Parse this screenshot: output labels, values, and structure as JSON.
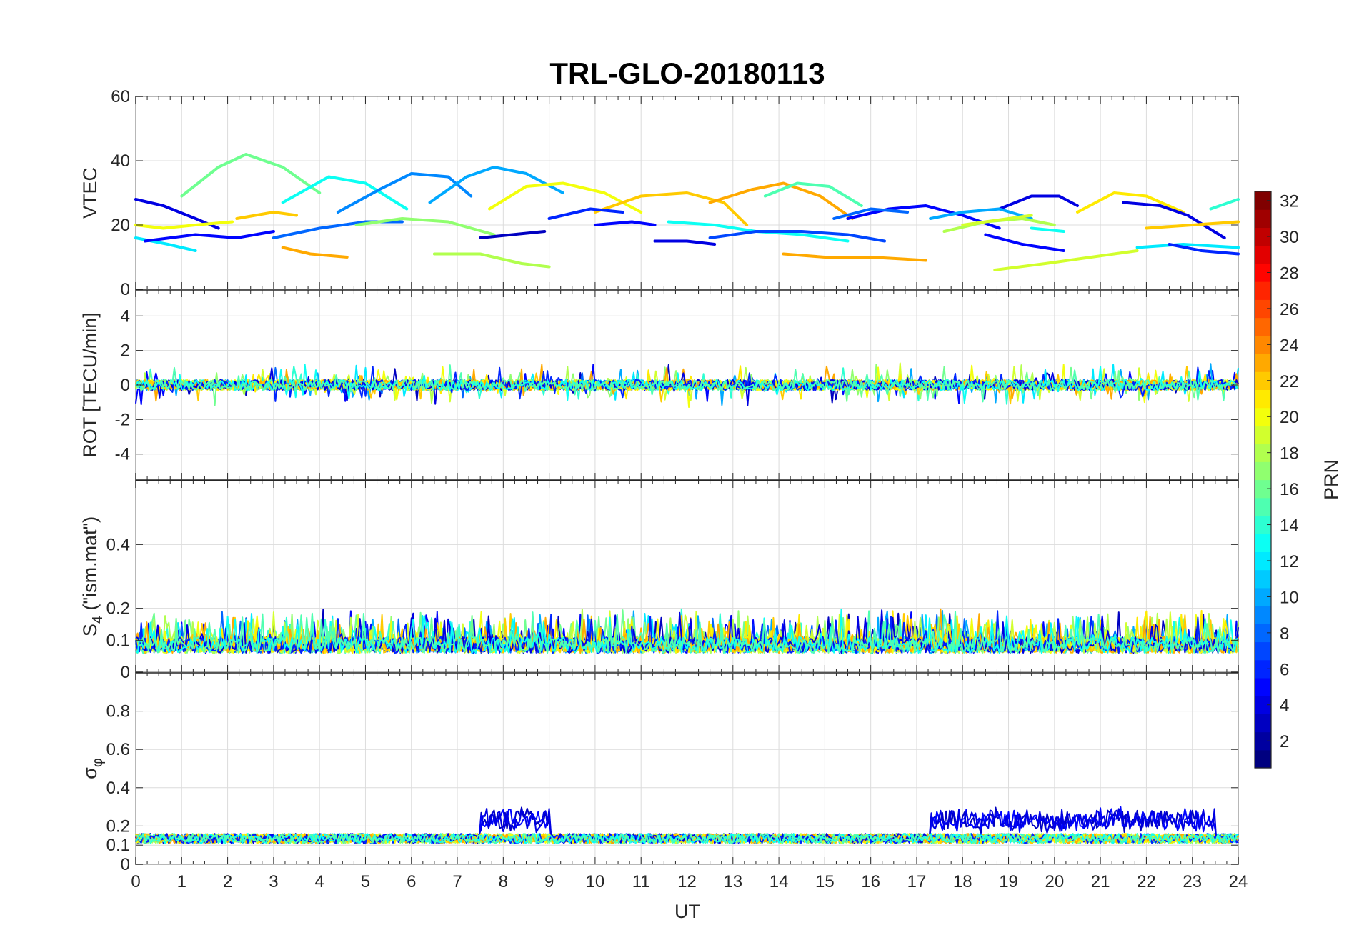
{
  "chart_data": {
    "type": "line",
    "title": "TRL-GLO-20180113",
    "xlabel": "UT",
    "xlim": [
      0,
      24
    ],
    "xticks": [
      "0",
      "1",
      "2",
      "3",
      "4",
      "5",
      "6",
      "7",
      "8",
      "9",
      "10",
      "11",
      "12",
      "13",
      "14",
      "15",
      "16",
      "17",
      "18",
      "19",
      "20",
      "21",
      "22",
      "23",
      "24"
    ],
    "colormap": "jet",
    "colorbar": {
      "label": "PRN",
      "range": [
        1,
        32
      ],
      "ticks": [
        "2",
        "4",
        "6",
        "8",
        "10",
        "12",
        "14",
        "16",
        "18",
        "20",
        "22",
        "24",
        "26",
        "28",
        "30",
        "32"
      ],
      "placement": "right"
    },
    "panels": [
      {
        "id": "vtec",
        "ylabel": "VTEC",
        "ylim": [
          0,
          60
        ],
        "yticks": [
          "0",
          "20",
          "40",
          "60"
        ],
        "series": [
          {
            "prn": 4,
            "x": [
              0,
              0.6,
              1.3,
              1.8
            ],
            "y": [
              28,
              26,
              22,
              19
            ]
          },
          {
            "prn": 16,
            "x": [
              1.0,
              1.8,
              2.4,
              3.2,
              4.0
            ],
            "y": [
              29,
              38,
              42,
              38,
              30
            ]
          },
          {
            "prn": 13,
            "x": [
              3.2,
              4.2,
              5.0,
              5.9
            ],
            "y": [
              27,
              35,
              33,
              25
            ]
          },
          {
            "prn": 9,
            "x": [
              4.4,
              5.3,
              6.0,
              6.8,
              7.3
            ],
            "y": [
              24,
              31,
              36,
              35,
              29
            ]
          },
          {
            "prn": 10,
            "x": [
              6.4,
              7.2,
              7.8,
              8.5,
              9.3
            ],
            "y": [
              27,
              35,
              38,
              36,
              30
            ]
          },
          {
            "prn": 20,
            "x": [
              7.7,
              8.5,
              9.3,
              10.2,
              11.0
            ],
            "y": [
              25,
              32,
              33,
              30,
              24
            ]
          },
          {
            "prn": 22,
            "x": [
              10.0,
              11.0,
              12.0,
              12.8,
              13.3
            ],
            "y": [
              24,
              29,
              30,
              27,
              20
            ]
          },
          {
            "prn": 23,
            "x": [
              12.5,
              13.4,
              14.1,
              14.9,
              15.6
            ],
            "y": [
              27,
              31,
              33,
              29,
              22
            ]
          },
          {
            "prn": 15,
            "x": [
              13.7,
              14.4,
              15.1,
              15.8
            ],
            "y": [
              29,
              33,
              32,
              26
            ]
          },
          {
            "prn": 5,
            "x": [
              15.5,
              16.4,
              17.2,
              18.0,
              18.8
            ],
            "y": [
              22,
              25,
              26,
              23,
              19
            ]
          },
          {
            "prn": 4,
            "x": [
              18.8,
              19.5,
              20.1,
              20.5
            ],
            "y": [
              25,
              29,
              29,
              26
            ]
          },
          {
            "prn": 21,
            "x": [
              20.5,
              21.3,
              22.0,
              22.8
            ],
            "y": [
              24,
              30,
              29,
              24
            ]
          },
          {
            "prn": 12,
            "x": [
              0,
              0.7,
              1.3
            ],
            "y": [
              16,
              14,
              12
            ]
          },
          {
            "prn": 5,
            "x": [
              0.2,
              1.3,
              2.2,
              3.0
            ],
            "y": [
              15,
              17,
              16,
              18
            ]
          },
          {
            "prn": 20,
            "x": [
              0,
              0.6,
              1.3,
              2.1
            ],
            "y": [
              20,
              19,
              20,
              21
            ]
          },
          {
            "prn": 22,
            "x": [
              2.2,
              3.0,
              3.5
            ],
            "y": [
              22,
              24,
              23
            ]
          },
          {
            "prn": 23,
            "x": [
              3.2,
              3.8,
              4.6
            ],
            "y": [
              13,
              11,
              10
            ]
          },
          {
            "prn": 8,
            "x": [
              3.0,
              4.0,
              5.0,
              5.8
            ],
            "y": [
              16,
              19,
              21,
              21
            ]
          },
          {
            "prn": 17,
            "x": [
              4.8,
              5.8,
              6.8,
              7.8
            ],
            "y": [
              20,
              22,
              21,
              17
            ]
          },
          {
            "prn": 18,
            "x": [
              6.5,
              7.5,
              8.4,
              9.0
            ],
            "y": [
              11,
              11,
              8,
              7
            ]
          },
          {
            "prn": 3,
            "x": [
              7.5,
              8.2,
              8.9
            ],
            "y": [
              16,
              17,
              18
            ]
          },
          {
            "prn": 6,
            "x": [
              9.0,
              9.9,
              10.6
            ],
            "y": [
              22,
              25,
              24
            ]
          },
          {
            "prn": 5,
            "x": [
              10.0,
              10.8,
              11.3
            ],
            "y": [
              20,
              21,
              20
            ]
          },
          {
            "prn": 4,
            "x": [
              11.3,
              12.0,
              12.6
            ],
            "y": [
              15,
              15,
              14
            ]
          },
          {
            "prn": 13,
            "x": [
              11.6,
              12.6,
              13.5,
              14.5,
              15.5
            ],
            "y": [
              21,
              20,
              18,
              17,
              15
            ]
          },
          {
            "prn": 7,
            "x": [
              12.5,
              13.5,
              14.5,
              15.5,
              16.3
            ],
            "y": [
              16,
              18,
              18,
              17,
              15
            ]
          },
          {
            "prn": 23,
            "x": [
              14.1,
              15.0,
              16.0,
              17.2
            ],
            "y": [
              11,
              10,
              10,
              9
            ]
          },
          {
            "prn": 8,
            "x": [
              15.2,
              16.0,
              16.8
            ],
            "y": [
              22,
              25,
              24
            ]
          },
          {
            "prn": 10,
            "x": [
              17.3,
              18.0,
              18.8,
              19.5
            ],
            "y": [
              22,
              24,
              25,
              22
            ]
          },
          {
            "prn": 18,
            "x": [
              17.6,
              18.5,
              19.3,
              20.0
            ],
            "y": [
              18,
              21,
              22,
              20
            ]
          },
          {
            "prn": 5,
            "x": [
              18.5,
              19.3,
              20.2
            ],
            "y": [
              17,
              14,
              12
            ]
          },
          {
            "prn": 19,
            "x": [
              18.7,
              19.8,
              20.8,
              21.8
            ],
            "y": [
              6,
              8,
              10,
              12
            ]
          },
          {
            "prn": 12,
            "x": [
              21.8,
              22.8,
              24.0
            ],
            "y": [
              13,
              14,
              13
            ]
          },
          {
            "prn": 4,
            "x": [
              21.5,
              22.3,
              22.9,
              23.7
            ],
            "y": [
              27,
              26,
              23,
              16
            ]
          },
          {
            "prn": 22,
            "x": [
              22.0,
              23.0,
              24.0
            ],
            "y": [
              19,
              20,
              21
            ]
          },
          {
            "prn": 6,
            "x": [
              22.5,
              23.2,
              24.0
            ],
            "y": [
              14,
              12,
              11
            ]
          },
          {
            "prn": 14,
            "x": [
              23.4,
              24.0
            ],
            "y": [
              25,
              28
            ]
          },
          {
            "prn": 13,
            "x": [
              19.5,
              20.2
            ],
            "y": [
              19,
              18
            ]
          },
          {
            "prn": 19,
            "x": [
              18.0,
              19.5
            ],
            "y": [
              20,
              23
            ]
          }
        ]
      },
      {
        "id": "rot",
        "ylabel": "ROT [TECU/min]",
        "ylim": [
          -5.5,
          5.5
        ],
        "yticks": [
          "-4",
          "-2",
          "0",
          "2",
          "4"
        ]
      },
      {
        "id": "s4",
        "ylabel": "S4 (\"ism.mat\")",
        "ylabel_main": "S",
        "ylabel_sub": "4",
        "ylabel_rest": " (\"ism.mat\")",
        "ylim": [
          0,
          0.6
        ],
        "yticks": [
          "0",
          "0.1",
          "0.2",
          "0.4"
        ]
      },
      {
        "id": "sigma",
        "ylabel": "σφ",
        "ylabel_main": "σ",
        "ylabel_sub": "φ",
        "ylim": [
          0,
          1
        ],
        "yticks": [
          "0",
          "0.1",
          "0.2",
          "0.4",
          "0.6",
          "0.8"
        ]
      }
    ]
  }
}
